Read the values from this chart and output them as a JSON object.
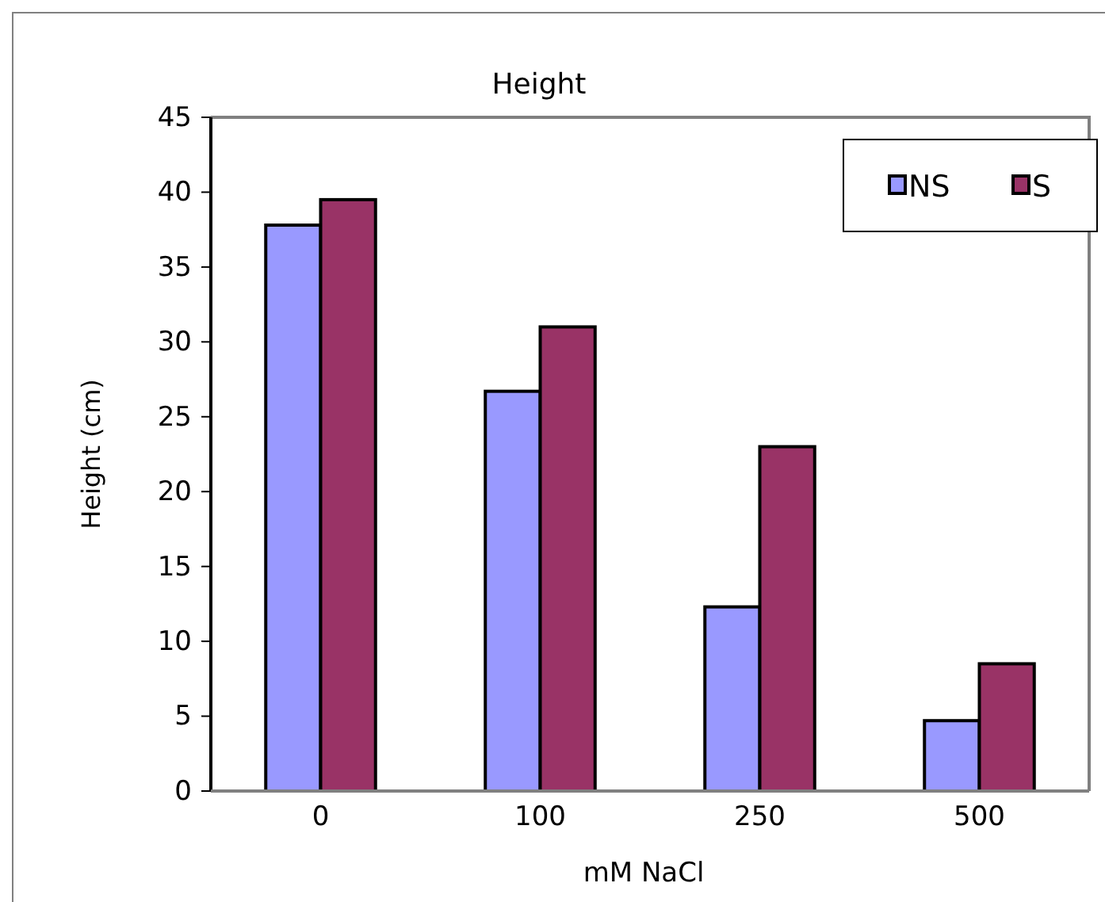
{
  "chart_data": {
    "type": "bar",
    "title": "Height",
    "xlabel": "mM NaCl",
    "ylabel": "Height (cm)",
    "categories": [
      "0",
      "100",
      "250",
      "500"
    ],
    "series": [
      {
        "name": "NS",
        "color": "#9999ff",
        "values": [
          37.8,
          26.7,
          12.3,
          4.7
        ]
      },
      {
        "name": "S",
        "color": "#993366",
        "values": [
          39.5,
          31.0,
          23.0,
          8.5
        ]
      }
    ],
    "ylim": [
      0,
      45
    ],
    "yticks": [
      0,
      5,
      10,
      15,
      20,
      25,
      30,
      35,
      40,
      45
    ],
    "grid": false,
    "legend": "top right"
  }
}
